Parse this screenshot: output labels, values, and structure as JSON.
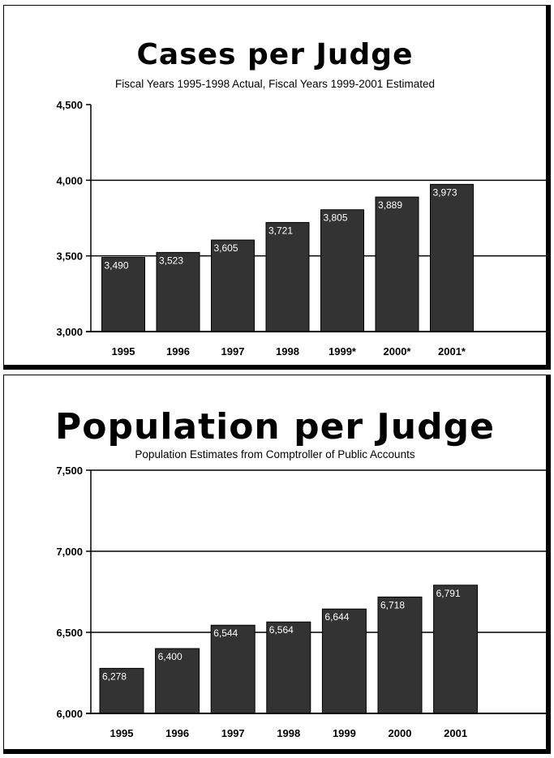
{
  "chart_data": [
    {
      "type": "bar",
      "title": "Cases per Judge",
      "subtitle": "Fiscal Years 1995-1998 Actual, Fiscal Years 1999-2001 Estimated",
      "categories": [
        "1995",
        "1996",
        "1997",
        "1998",
        "1999*",
        "2000*",
        "2001*"
      ],
      "values": [
        3490,
        3523,
        3605,
        3721,
        3805,
        3889,
        3973
      ],
      "value_labels": [
        "3,490",
        "3,523",
        "3,605",
        "3,721",
        "3,805",
        "3,889",
        "3,973"
      ],
      "ylim": [
        3000,
        4500
      ],
      "yticks": [
        3000,
        3500,
        4000,
        4500
      ],
      "ytick_labels": [
        "3,000",
        "3,500",
        "4,000",
        "4,500"
      ],
      "gridlines": [
        3500,
        4000
      ],
      "grid": true,
      "bar_color": "#333333"
    },
    {
      "type": "bar",
      "title": "Population per Judge",
      "subtitle": "Population Estimates from Comptroller of Public Accounts",
      "categories": [
        "1995",
        "1996",
        "1997",
        "1998",
        "1999",
        "2000",
        "2001"
      ],
      "values": [
        6278,
        6400,
        6544,
        6564,
        6644,
        6718,
        6791
      ],
      "value_labels": [
        "6,278",
        "6,400",
        "6,544",
        "6,564",
        "6,644",
        "6,718",
        "6,791"
      ],
      "ylim": [
        6000,
        7500
      ],
      "yticks": [
        6000,
        6500,
        7000,
        7500
      ],
      "ytick_labels": [
        "6,000",
        "6,500",
        "7,000",
        "7,500"
      ],
      "gridlines": [
        6500,
        7000,
        7500
      ],
      "grid": true,
      "bar_color": "#333333"
    }
  ]
}
